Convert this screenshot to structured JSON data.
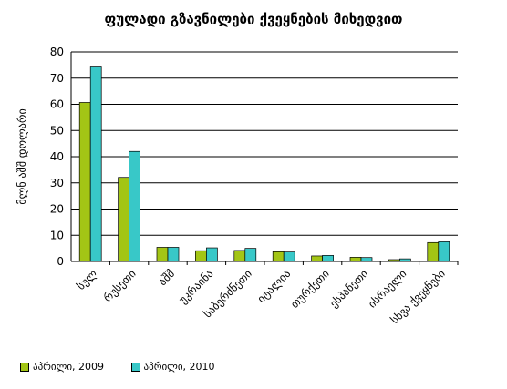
{
  "chart_data": {
    "type": "bar",
    "title": "ფულადი გზავნილები ქვეყნების მიხედვით",
    "ylabel": "მლნ აშშ დოლარი",
    "xlabel": "",
    "ylim": [
      0,
      80
    ],
    "yticks": [
      0,
      10,
      20,
      30,
      40,
      50,
      60,
      70,
      80
    ],
    "grid": true,
    "legend_position": "bottom-left",
    "categories": [
      "სულ",
      "რუსეთი",
      "აშშ",
      "უკრაინა",
      "საბერძნეთი",
      "იტალია",
      "თურქეთი",
      "ესპანეთი",
      "ისრაელი",
      "სხვა ქვეყნები"
    ],
    "series": [
      {
        "name": "აპრილი, 2009",
        "color": "#a3c515",
        "values": [
          60.7,
          32.1,
          5.4,
          4.1,
          4.2,
          3.7,
          2.1,
          1.6,
          0.7,
          7.2
        ]
      },
      {
        "name": "აპრილი, 2010",
        "color": "#38c8c8",
        "values": [
          74.6,
          42.0,
          5.4,
          5.2,
          5.0,
          3.6,
          2.3,
          1.5,
          1.0,
          7.5
        ]
      }
    ]
  }
}
